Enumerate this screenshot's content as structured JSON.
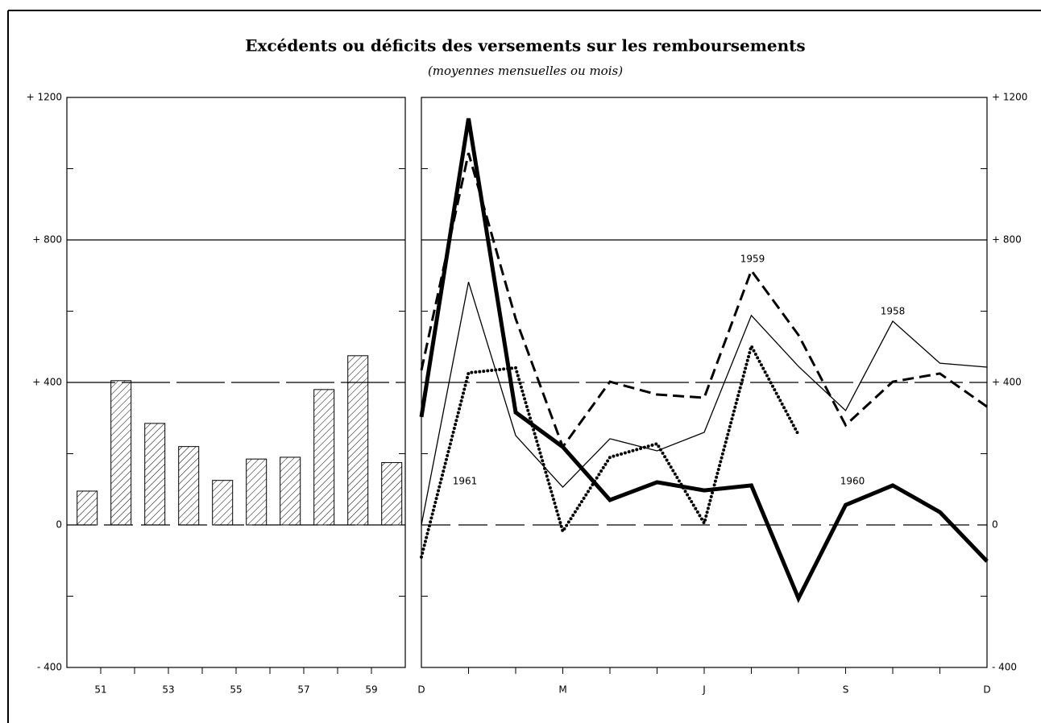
{
  "title": "Excédents ou déficits des versements sur les remboursements",
  "subtitle": "(moyennes mensuelles ou mois)",
  "chart_data": [
    {
      "type": "bar",
      "categories": [
        "51",
        null,
        "53",
        null,
        "55",
        null,
        "57",
        null,
        "59",
        null
      ],
      "values": [
        95,
        405,
        285,
        220,
        125,
        185,
        190,
        380,
        475,
        175
      ],
      "color": "#000000",
      "fill": "hatched",
      "ylim": [
        -400,
        1200
      ],
      "yticks": [
        {
          "value": -400,
          "label": "- 400"
        },
        0,
        {
          "value": 400,
          "label": "+ 400"
        },
        {
          "value": 800,
          "label": "+ 800"
        },
        {
          "value": 1200,
          "label": "+ 1200"
        }
      ],
      "minor_yticks": [
        -200,
        200,
        600,
        1000
      ],
      "grid": true
    },
    {
      "type": "line",
      "categories": [
        "D",
        null,
        null,
        "M",
        null,
        null,
        "J",
        null,
        null,
        "S",
        null,
        null,
        "D"
      ],
      "series": [
        {
          "name": "1960",
          "color": "#000000",
          "style": "heavy",
          "values": [
            303,
            1141,
            316,
            219,
            70,
            120,
            97,
            111,
            -206,
            56,
            111,
            36,
            -102
          ]
        },
        {
          "name": "1958",
          "color": "#000000",
          "style": "light",
          "values": [
            0,
            682,
            251,
            106,
            242,
            208,
            260,
            588,
            445,
            321,
            572,
            454,
            443
          ]
        },
        {
          "name": "1959",
          "color": "#000000",
          "style": "dashed",
          "values": [
            434,
            1044,
            579,
            219,
            402,
            366,
            357,
            714,
            533,
            280,
            402,
            425,
            332
          ]
        },
        {
          "name": "1961",
          "color": "#000000",
          "style": "dotted",
          "values": [
            -90,
            427,
            441,
            -18,
            190,
            228,
            5,
            502,
            253,
            null,
            null,
            null,
            null
          ]
        }
      ],
      "ylim": [
        -400,
        1200
      ],
      "yticks": [
        {
          "value": -400,
          "label": "- 400"
        },
        0,
        {
          "value": 400,
          "label": "+ 400"
        },
        {
          "value": 800,
          "label": "+ 800"
        },
        {
          "value": 1200,
          "label": "+ 1200"
        }
      ],
      "minor_yticks": [
        -200,
        200,
        600,
        1000
      ],
      "grid": true
    }
  ]
}
